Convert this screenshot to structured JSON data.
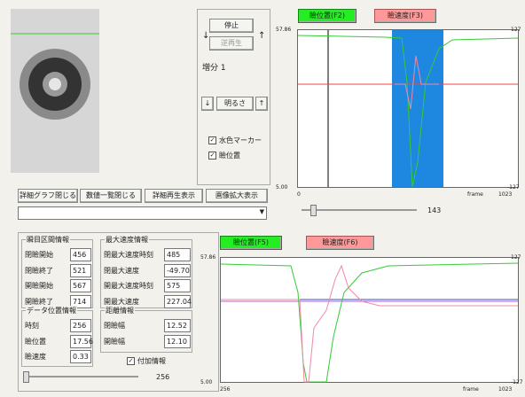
{
  "controls": {
    "stop": "停止",
    "reverse": "逆再生",
    "step_down": "↓",
    "step_up": "↑",
    "increment_label": "増分",
    "increment": "1",
    "brightness": "明るさ",
    "brightness_down": "↓",
    "brightness_up": "↑",
    "marker": "水色マーカー",
    "lid": "瞼位置"
  },
  "top_graph": {
    "tab_position": "瞼位置(F2)",
    "tab_speed": "瞼速度(F3)",
    "y_max": "57.86",
    "y_min": "5.00",
    "y2_max": "127",
    "y2_min": "-127",
    "x_start": "0",
    "x_unit": "frame",
    "x_end": "1023",
    "slider_value": "143"
  },
  "toolbar": [
    "詳細グラフ閉じる",
    "数値一覧閉じる",
    "詳細再生表示",
    "画像拡大表示"
  ],
  "blink": {
    "title": "瞬目区間情報",
    "rows": [
      [
        "閉瞼開始",
        "456"
      ],
      [
        "閉瞼終了",
        "521"
      ],
      [
        "開瞼開始",
        "567"
      ],
      [
        "開瞼終了",
        "714"
      ]
    ]
  },
  "max_speed": {
    "title": "最大速度情報",
    "rows": [
      [
        "閉最大速度時刻",
        "485"
      ],
      [
        "閉最大速度",
        "-49.70"
      ],
      [
        "開最大速度時刻",
        "575"
      ],
      [
        "開最大速度",
        "227.04"
      ]
    ]
  },
  "data_position": {
    "title": "データ位置情報",
    "rows": [
      [
        "時刻",
        "256"
      ],
      [
        "瞼位置",
        "17.56"
      ],
      [
        "瞼速度",
        "0.33"
      ]
    ]
  },
  "distance": {
    "title": "距離情報",
    "rows": [
      [
        "閉瞼幅",
        "12.52"
      ],
      [
        "開瞼幅",
        "12.10"
      ]
    ]
  },
  "extra_info": "付加情報",
  "bottom_slider_value": "256",
  "bottom_graph": {
    "tab_position": "瞼位置(F5)",
    "tab_speed": "瞼速度(F6)",
    "y_max": "57.86",
    "y_min": "5.00",
    "y2_max": "127",
    "y2_min": "-127",
    "x_start": "256",
    "x_unit": "frame",
    "x_end": "1023"
  }
}
